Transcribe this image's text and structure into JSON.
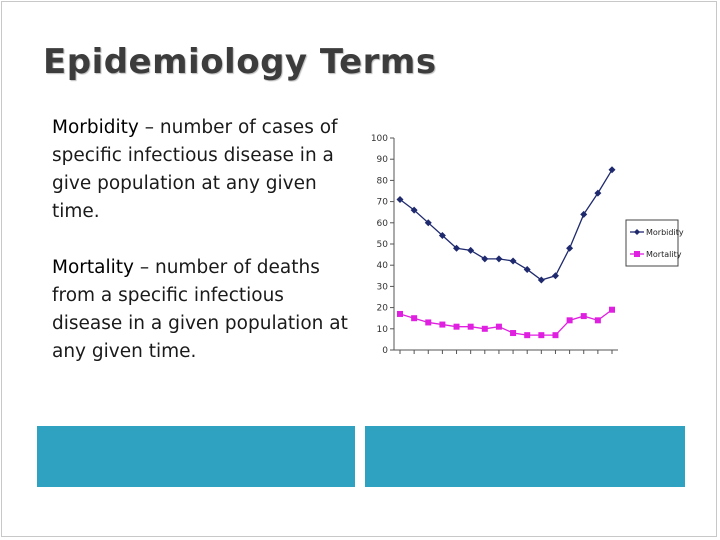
{
  "slide": {
    "title": "Epidemiology Terms",
    "morbidity_term": "Morbidity",
    "morbidity_def": " – number of cases of specific infectious disease in a give population at any given time.",
    "mortality_term": "Mortality",
    "mortality_def": " – number of deaths from a specific infectious disease in a given population at any given time."
  },
  "colors": {
    "morbidity": "#1f2a6e",
    "mortality": "#e020e0",
    "accent_bar": "#2ea2c0"
  },
  "chart_data": {
    "type": "line",
    "ylim": [
      0,
      100
    ],
    "yticks": [
      0,
      10,
      20,
      30,
      40,
      50,
      60,
      70,
      80,
      90,
      100
    ],
    "series": [
      {
        "name": "Morbidity",
        "values": [
          71,
          66,
          60,
          54,
          48,
          47,
          43,
          43,
          42,
          38,
          33,
          35,
          48,
          64,
          74,
          85
        ]
      },
      {
        "name": "Mortality",
        "values": [
          17,
          15,
          13,
          12,
          11,
          11,
          10,
          11,
          8,
          7,
          7,
          7,
          14,
          16,
          14,
          19
        ]
      }
    ],
    "legend_position": "right"
  }
}
